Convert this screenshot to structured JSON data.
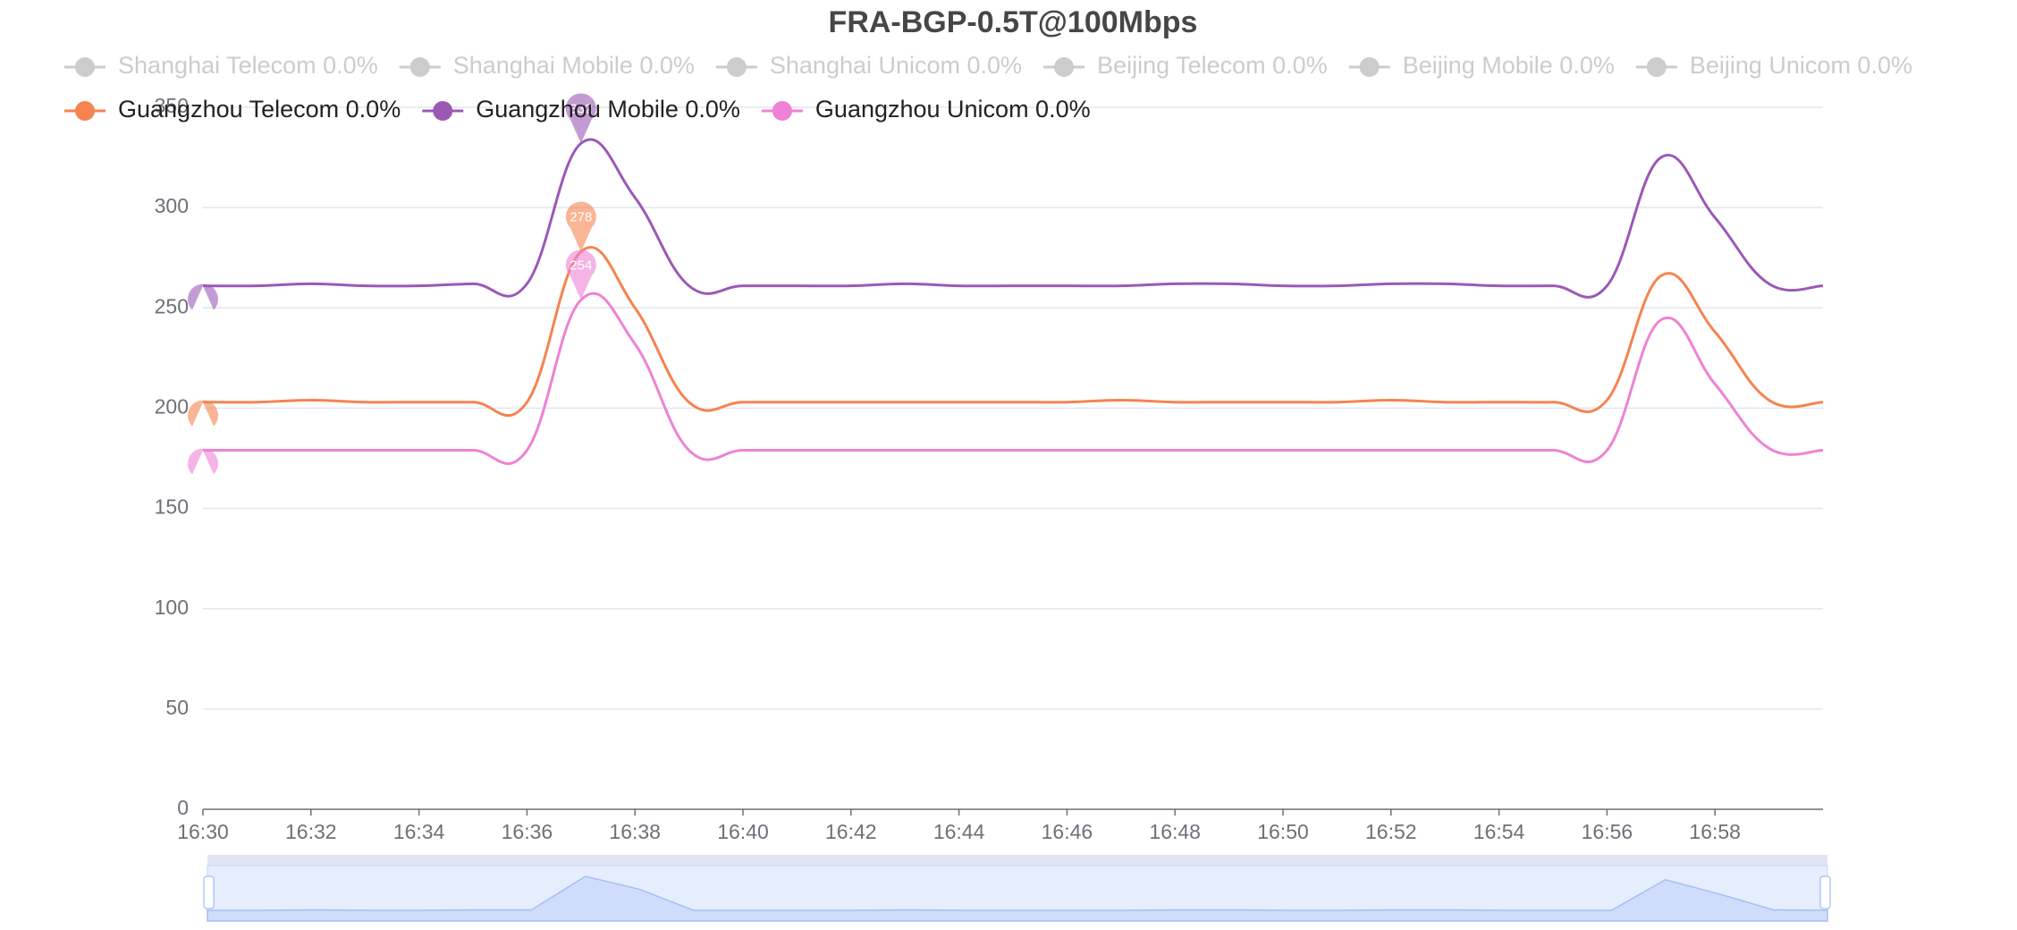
{
  "chart_data": {
    "type": "line",
    "title": "FRA-BGP-0.5T@100Mbps",
    "categories": [
      "16:30",
      null,
      "16:32",
      null,
      "16:34",
      null,
      "16:36",
      null,
      "16:38",
      null,
      "16:40",
      null,
      "16:42",
      null,
      "16:44",
      null,
      "16:46",
      null,
      "16:48",
      null,
      "16:50",
      null,
      "16:52",
      null,
      "16:54",
      null,
      "16:56",
      null,
      "16:58",
      null,
      null
    ],
    "ylim": [
      0,
      350
    ],
    "yticks": [
      0,
      50,
      100,
      150,
      200,
      250,
      300,
      350
    ],
    "grid": true,
    "inactive_legend": [
      {
        "name": "Shanghai Telecom 0.0%",
        "color": "#cccccc"
      },
      {
        "name": "Shanghai Mobile 0.0%",
        "color": "#cccccc"
      },
      {
        "name": "Shanghai Unicom 0.0%",
        "color": "#cccccc"
      },
      {
        "name": "Beijing Telecom 0.0%",
        "color": "#cccccc"
      },
      {
        "name": "Beijing Mobile 0.0%",
        "color": "#cccccc"
      },
      {
        "name": "Beijing Unicom 0.0%",
        "color": "#cccccc"
      }
    ],
    "series": [
      {
        "name": "Guangzhou Telecom 0.0%",
        "color": "#f5834f",
        "marked_max": 7,
        "marked_min": 0,
        "values": [
          203,
          203,
          204,
          203,
          203,
          203,
          203,
          278,
          250,
          203,
          203,
          203,
          203,
          203,
          203,
          203,
          203,
          204,
          203,
          203,
          203,
          203,
          204,
          203,
          203,
          203,
          204,
          266,
          238,
          204,
          203
        ]
      },
      {
        "name": "Guangzhou Mobile 0.0%",
        "color": "#9b59b6",
        "marked_max": 7,
        "marked_min": 0,
        "values": [
          261,
          261,
          262,
          261,
          261,
          262,
          262,
          332,
          305,
          261,
          261,
          261,
          261,
          262,
          261,
          261,
          261,
          261,
          262,
          262,
          261,
          261,
          262,
          262,
          261,
          261,
          261,
          325,
          295,
          262,
          261
        ]
      },
      {
        "name": "Guangzhou Unicom 0.0%",
        "color": "#ee82d4",
        "marked_max": 7,
        "marked_min": 0,
        "values": [
          179,
          179,
          179,
          179,
          179,
          179,
          179,
          254,
          232,
          179,
          179,
          179,
          179,
          179,
          179,
          179,
          179,
          179,
          179,
          179,
          179,
          179,
          179,
          179,
          179,
          179,
          179,
          244,
          212,
          180,
          179
        ]
      }
    ]
  }
}
